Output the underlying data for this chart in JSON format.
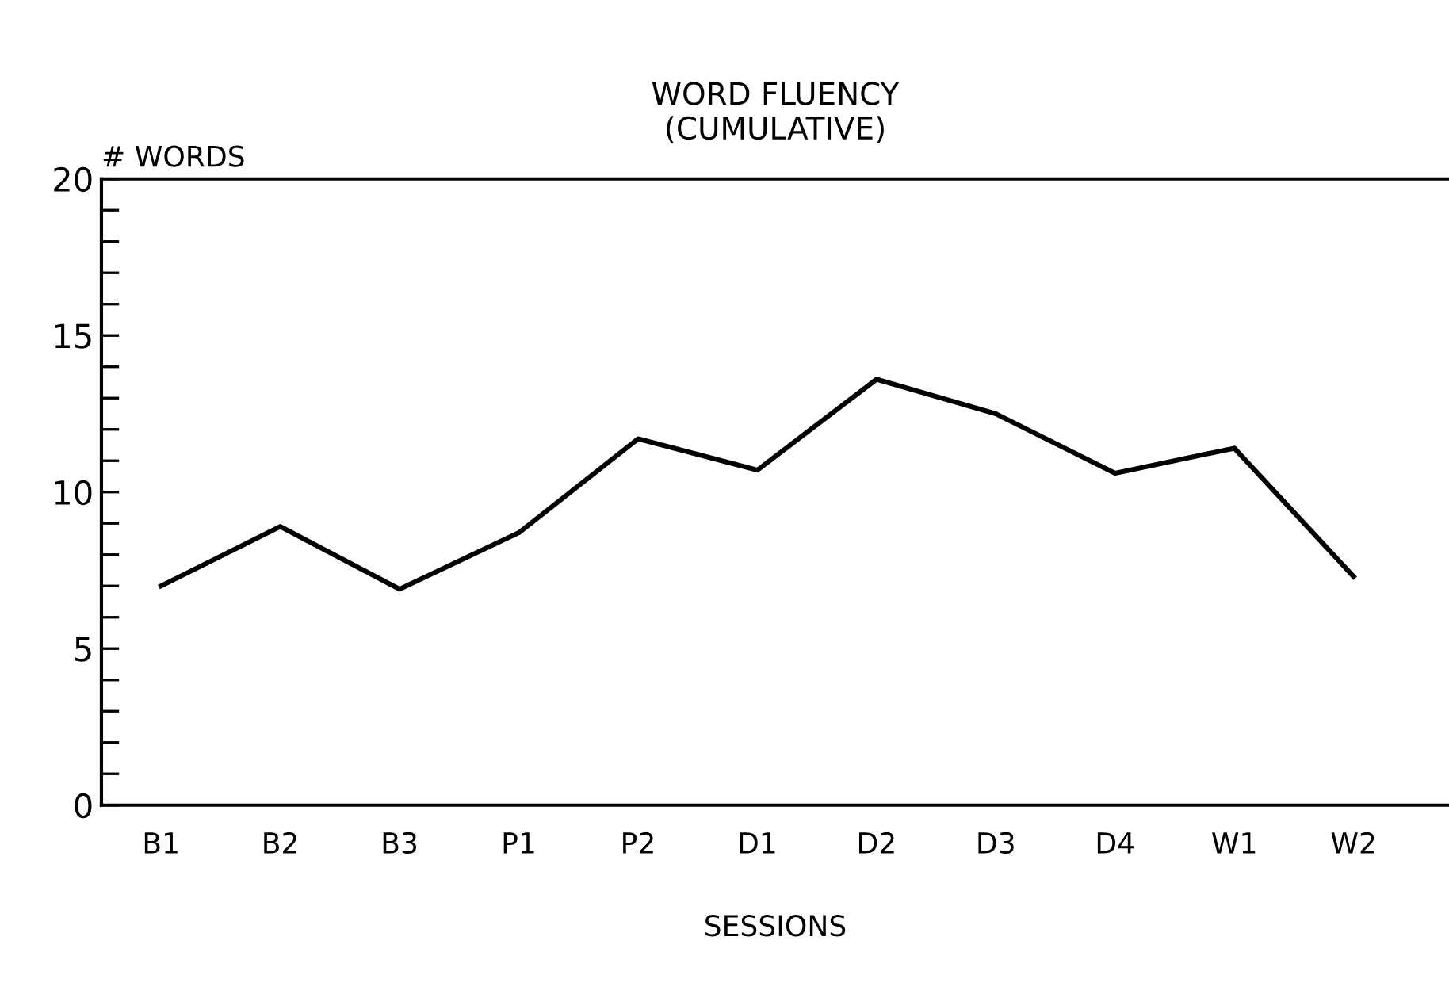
{
  "chart_data": {
    "type": "line",
    "title": "WORD FLUENCY\n(CUMULATIVE)",
    "xlabel": "SESSIONS",
    "ylabel": "# WORDS",
    "categories": [
      "B1",
      "B2",
      "B3",
      "P1",
      "P2",
      "D1",
      "D2",
      "D3",
      "D4",
      "W1",
      "W2"
    ],
    "series": [
      {
        "color": "#000000",
        "values": [
          7.0,
          8.9,
          6.9,
          8.7,
          11.7,
          10.7,
          13.6,
          12.5,
          10.6,
          11.4,
          7.3
        ]
      }
    ],
    "ylim": [
      0,
      20
    ],
    "yticks": [
      0,
      {
        "value": 1,
        "label": null
      },
      {
        "value": 2,
        "label": null
      },
      {
        "value": 3,
        "label": null
      },
      {
        "value": 4,
        "label": null
      },
      5,
      {
        "value": 6,
        "label": null
      },
      {
        "value": 7,
        "label": null
      },
      {
        "value": 8,
        "label": null
      },
      {
        "value": 9,
        "label": null
      },
      10,
      {
        "value": 11,
        "label": null
      },
      {
        "value": 12,
        "label": null
      },
      {
        "value": 13,
        "label": null
      },
      {
        "value": 14,
        "label": null
      },
      15,
      {
        "value": 16,
        "label": null
      },
      {
        "value": 17,
        "label": null
      },
      {
        "value": 18,
        "label": null
      },
      {
        "value": 19,
        "label": null
      },
      20
    ],
    "grid": false,
    "marker": "none",
    "line_style": "solid"
  }
}
